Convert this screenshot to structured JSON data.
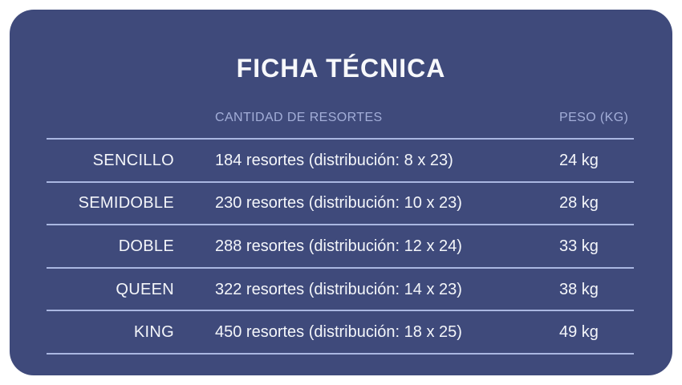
{
  "card": {
    "title": "FICHA TÉCNICA",
    "columns": {
      "springs": "CANTIDAD DE RESORTES",
      "weight": "PESO (KG)"
    },
    "rows": [
      {
        "size": "SENCILLO",
        "springs": "184 resortes (distribución: 8 x 23)",
        "weight": "24 kg"
      },
      {
        "size": "SEMIDOBLE",
        "springs": "230 resortes (distribución: 10 x 23)",
        "weight": "28 kg"
      },
      {
        "size": "DOBLE",
        "springs": "288 resortes (distribución: 12 x 24)",
        "weight": "33 kg"
      },
      {
        "size": "QUEEN",
        "springs": "322 resortes (distribución: 14 x 23)",
        "weight": "38 kg"
      },
      {
        "size": "KING",
        "springs": "450 resortes (distribución: 18 x 25)",
        "weight": "49 kg"
      }
    ],
    "colors": {
      "page_bg": "#ffffff",
      "card_bg": "#3f4a7b",
      "divider": "#aab7e1",
      "header_text": "#a3aed8",
      "body_text": "#f4f6fa"
    }
  }
}
